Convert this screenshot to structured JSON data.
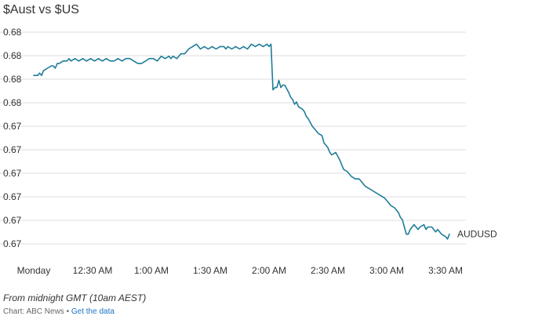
{
  "chart_data": {
    "type": "line",
    "title": "$Aust vs $US",
    "xlabel": "",
    "ylabel": "",
    "x_ticks": [
      "Monday",
      "12:30 AM",
      "1:00 AM",
      "1:30 AM",
      "2:00 AM",
      "2:30 AM",
      "3:00 AM",
      "3:30 AM"
    ],
    "y_ticks": [
      "0.68",
      "0.68",
      "0.68",
      "0.68",
      "0.67",
      "0.67",
      "0.67",
      "0.67",
      "0.67",
      "0.67"
    ],
    "ylim": [
      0.6715,
      0.6803
    ],
    "grid": true,
    "series": [
      {
        "name": "AUDUSD",
        "color": "#1f7c99",
        "x": [
          "00:00",
          "00:01",
          "00:02",
          "00:03",
          "00:04",
          "00:05",
          "00:07",
          "00:09",
          "00:10",
          "00:11",
          "00:12",
          "00:13",
          "00:15",
          "00:17",
          "00:18",
          "00:19",
          "00:21",
          "00:23",
          "00:25",
          "00:27",
          "00:29",
          "00:31",
          "00:33",
          "00:35",
          "00:37",
          "00:39",
          "00:41",
          "00:43",
          "00:45",
          "00:47",
          "00:49",
          "00:51",
          "00:53",
          "00:55",
          "00:57",
          "00:59",
          "01:01",
          "01:03",
          "01:05",
          "01:07",
          "01:09",
          "01:10",
          "01:11",
          "01:13",
          "01:15",
          "01:17",
          "01:19",
          "01:21",
          "01:23",
          "01:25",
          "01:27",
          "01:29",
          "01:31",
          "01:33",
          "01:35",
          "01:37",
          "01:38",
          "01:39",
          "01:41",
          "01:43",
          "01:45",
          "01:47",
          "01:49",
          "01:51",
          "01:53",
          "01:55",
          "01:57",
          "01:59",
          "02:00",
          "02:01",
          "02:02",
          "02:03",
          "02:04",
          "02:05",
          "02:06",
          "02:07",
          "02:08",
          "02:10",
          "02:11",
          "02:12",
          "02:13",
          "02:14",
          "02:15",
          "02:17",
          "02:18",
          "02:19",
          "02:20",
          "02:22",
          "02:24",
          "02:25",
          "02:27",
          "02:28",
          "02:30",
          "02:31",
          "02:32",
          "02:34",
          "02:36",
          "02:38",
          "02:40",
          "02:42",
          "02:44",
          "02:46",
          "02:47",
          "02:49",
          "02:51",
          "02:53",
          "02:55",
          "02:57",
          "02:59",
          "03:01",
          "03:02",
          "03:04",
          "03:06",
          "03:07",
          "03:08",
          "03:09",
          "03:10",
          "03:11",
          "03:12",
          "03:13",
          "03:14",
          "03:16",
          "03:17",
          "03:19",
          "03:20",
          "03:21",
          "03:23",
          "03:25",
          "03:26",
          "03:28",
          "03:30",
          "03:31",
          "03:32"
        ],
        "y": [
          0.6785,
          0.6785,
          0.6785,
          0.6786,
          0.6785,
          0.6787,
          0.6788,
          0.6789,
          0.6789,
          0.6788,
          0.679,
          0.679,
          0.6791,
          0.6791,
          0.6792,
          0.6791,
          0.6792,
          0.6791,
          0.6792,
          0.6791,
          0.6792,
          0.6791,
          0.6792,
          0.6791,
          0.6792,
          0.6791,
          0.6791,
          0.6792,
          0.6791,
          0.6792,
          0.6792,
          0.6791,
          0.679,
          0.679,
          0.6791,
          0.6792,
          0.6792,
          0.6791,
          0.6793,
          0.6792,
          0.6793,
          0.6792,
          0.6793,
          0.6792,
          0.6794,
          0.6794,
          0.6796,
          0.6797,
          0.6798,
          0.6796,
          0.6797,
          0.6796,
          0.6797,
          0.6796,
          0.6797,
          0.6797,
          0.6796,
          0.6797,
          0.6796,
          0.6797,
          0.6796,
          0.6797,
          0.6796,
          0.6798,
          0.6797,
          0.6798,
          0.6797,
          0.6798,
          0.6797,
          0.6798,
          0.6779,
          0.678,
          0.678,
          0.6783,
          0.678,
          0.6781,
          0.6781,
          0.6778,
          0.6776,
          0.6775,
          0.6773,
          0.6774,
          0.6772,
          0.6771,
          0.677,
          0.6768,
          0.6767,
          0.6764,
          0.6762,
          0.6761,
          0.676,
          0.6757,
          0.6755,
          0.6753,
          0.6752,
          0.6753,
          0.675,
          0.6746,
          0.6745,
          0.6743,
          0.6742,
          0.6742,
          0.6741,
          0.6739,
          0.6738,
          0.6737,
          0.6736,
          0.6735,
          0.6734,
          0.6732,
          0.6731,
          0.673,
          0.6728,
          0.6726,
          0.6725,
          0.6722,
          0.6719,
          0.6719,
          0.6721,
          0.6722,
          0.6723,
          0.6721,
          0.6722,
          0.6723,
          0.6721,
          0.6722,
          0.6722,
          0.672,
          0.6721,
          0.6719,
          0.6718,
          0.6717,
          0.6719
        ]
      }
    ]
  },
  "footnote": "From midnight GMT (10am AEST)",
  "credit": {
    "prefix": "Chart: ABC News",
    "separator": " • ",
    "link": "Get the data"
  }
}
